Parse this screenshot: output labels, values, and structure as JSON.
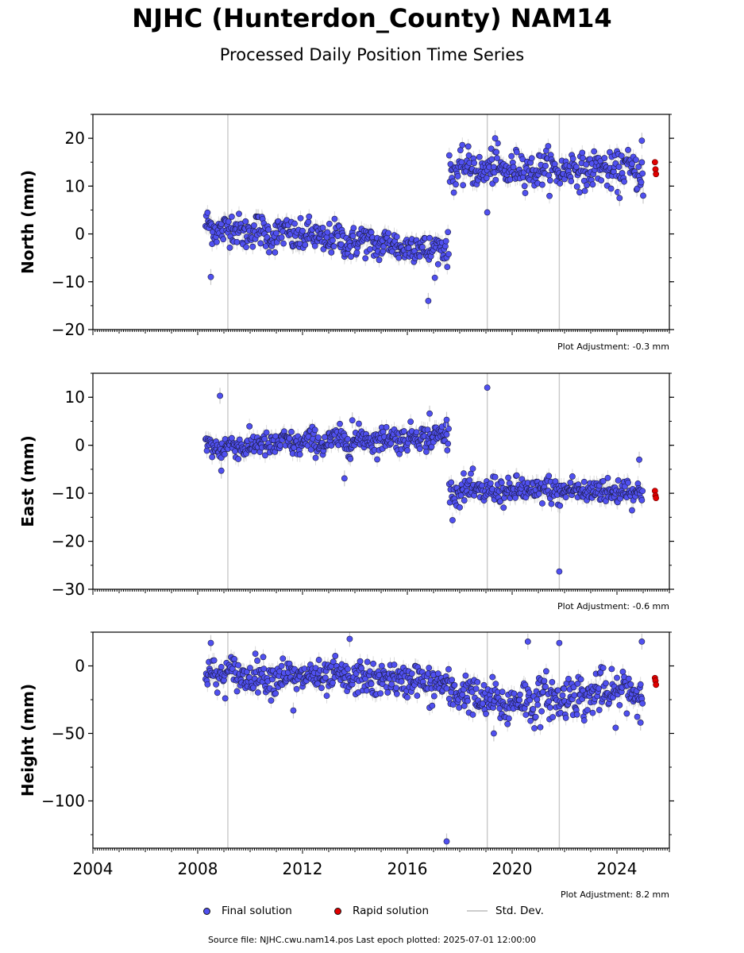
{
  "figure": {
    "title": "NJHC (Hunterdon_County) NAM14",
    "subtitle": "Processed Daily Position Time Series",
    "source_text": "Source file: NJHC.cwu.nam14.pos  Last epoch plotted: 2025-07-01 12:00:00"
  },
  "legend": {
    "final_label": "Final solution",
    "rapid_label": "Rapid solution",
    "std_label": "Std. Dev."
  },
  "colors": {
    "final": "#5050f0",
    "final_edge": "#1a1a40",
    "rapid": "#e00000",
    "stddev": "#c8c8c8",
    "axis": "#000000"
  },
  "chart_data": [
    {
      "type": "scatter",
      "component": "north",
      "ylabel": "North (mm)",
      "adjustment": "Plot Adjustment: -0.3 mm",
      "xlim": [
        2004,
        2026
      ],
      "ylim": [
        -20,
        25
      ],
      "yticks": [
        20,
        10,
        0,
        -10,
        -20
      ],
      "ytick_labels": [
        "20",
        "10",
        "0",
        "−10",
        "−20"
      ],
      "segments": [
        {
          "x_start": 2008.3,
          "x_end": 2017.6,
          "y_start": 1.5,
          "y_end": -3.5,
          "noise": 1.7
        },
        {
          "x_start": 2017.6,
          "x_end": 2025.0,
          "y_start": 13.5,
          "y_end": 13.5,
          "noise": 1.8
        }
      ],
      "outliers": [
        {
          "x": 2008.5,
          "y": -9
        },
        {
          "x": 2016.8,
          "y": -14
        },
        {
          "x": 2019.05,
          "y": 4.5
        },
        {
          "x": 2019.35,
          "y": 20
        },
        {
          "x": 2024.1,
          "y": 7.5
        },
        {
          "x": 2024.95,
          "y": 19.5
        },
        {
          "x": 2025.0,
          "y": 8
        }
      ],
      "rapid": [
        {
          "x": 2025.45,
          "y": 15
        },
        {
          "x": 2025.47,
          "y": 13.5
        },
        {
          "x": 2025.49,
          "y": 12.5
        }
      ],
      "stddev_spikes": [
        2009.15,
        2019.05,
        2021.8
      ],
      "grid": false
    },
    {
      "type": "scatter",
      "component": "east",
      "ylabel": "East (mm)",
      "adjustment": "Plot Adjustment: -0.6 mm",
      "xlim": [
        2004,
        2026
      ],
      "ylim": [
        -30,
        15
      ],
      "yticks": [
        10,
        0,
        -10,
        -20,
        -30
      ],
      "ytick_labels": [
        "10",
        "0",
        "−10",
        "−20",
        "−30"
      ],
      "segments": [
        {
          "x_start": 2008.3,
          "x_end": 2017.6,
          "y_start": -0.5,
          "y_end": 2.0,
          "noise": 1.3
        },
        {
          "x_start": 2017.6,
          "x_end": 2025.0,
          "y_start": -9.5,
          "y_end": -9.5,
          "noise": 1.4
        }
      ],
      "outliers": [
        {
          "x": 2008.85,
          "y": 10.3
        },
        {
          "x": 2008.9,
          "y": -5.3
        },
        {
          "x": 2013.6,
          "y": -6.9
        },
        {
          "x": 2013.9,
          "y": 5.2
        },
        {
          "x": 2016.85,
          "y": 6.6
        },
        {
          "x": 2017.5,
          "y": 5.3
        },
        {
          "x": 2019.05,
          "y": 12
        },
        {
          "x": 2021.8,
          "y": -26.3
        },
        {
          "x": 2024.85,
          "y": -3
        }
      ],
      "rapid": [
        {
          "x": 2025.45,
          "y": -9.5
        },
        {
          "x": 2025.47,
          "y": -10.5
        },
        {
          "x": 2025.49,
          "y": -11
        }
      ],
      "stddev_spikes": [
        2009.15,
        2019.05,
        2021.8
      ],
      "grid": false
    },
    {
      "type": "scatter",
      "component": "height",
      "ylabel": "Height (mm)",
      "adjustment": "Plot Adjustment: 8.2 mm",
      "xlim": [
        2004,
        2026
      ],
      "ylim": [
        -135,
        25
      ],
      "yticks": [
        0,
        -50,
        -100
      ],
      "ytick_labels": [
        "0",
        "−50",
        "−100"
      ],
      "xticks": [
        2004,
        2008,
        2012,
        2016,
        2020,
        2024
      ],
      "xtick_labels": [
        "2004",
        "2008",
        "2012",
        "2016",
        "2020",
        "2024"
      ],
      "segments": [
        {
          "x_start": 2008.3,
          "x_end": 2016.5,
          "y_start": -6,
          "y_end": -11,
          "noise": 6
        },
        {
          "x_start": 2016.5,
          "x_end": 2019.8,
          "y_start": -11,
          "y_end": -30,
          "noise": 7
        },
        {
          "x_start": 2019.8,
          "x_end": 2025.0,
          "y_start": -27,
          "y_end": -18,
          "noise": 8
        }
      ],
      "outliers": [
        {
          "x": 2008.5,
          "y": 17
        },
        {
          "x": 2011.65,
          "y": -33
        },
        {
          "x": 2013.8,
          "y": 20
        },
        {
          "x": 2017.5,
          "y": -130
        },
        {
          "x": 2019.3,
          "y": -50
        },
        {
          "x": 2020.6,
          "y": 18
        },
        {
          "x": 2021.8,
          "y": 17
        },
        {
          "x": 2024.9,
          "y": -42
        },
        {
          "x": 2024.95,
          "y": 18
        }
      ],
      "rapid": [
        {
          "x": 2025.45,
          "y": -9
        },
        {
          "x": 2025.47,
          "y": -11
        },
        {
          "x": 2025.49,
          "y": -14
        }
      ],
      "stddev_spikes": [
        2009.15,
        2019.05,
        2021.8
      ],
      "grid": false
    }
  ]
}
